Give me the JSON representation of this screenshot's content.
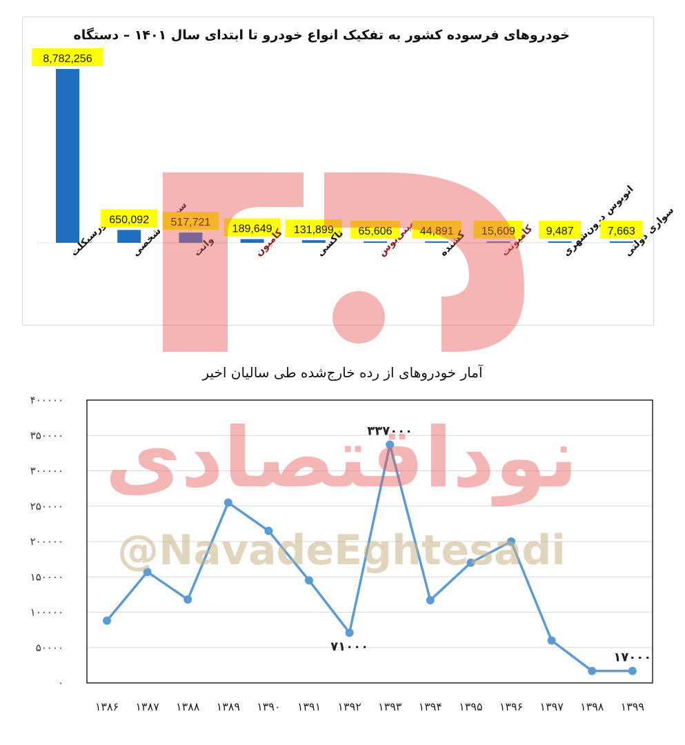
{
  "chart_data": [
    {
      "type": "bar",
      "title": "خودروهای فرسوده کشور به تفکیک انواع خودرو تا ابتدای سال ۱۴۰۱ – دستگاه",
      "categories": [
        "موتورسیکلت",
        "سواری شخصی",
        "وانت",
        "کامیون",
        "تاکسی",
        "مینی‌بوس",
        "کشنده",
        "کامیونت",
        "اتوبوس درون‌شهری",
        "سواری دولتی"
      ],
      "values": [
        8782256,
        650092,
        517721,
        189649,
        131899,
        65606,
        44891,
        15609,
        9487,
        7663
      ],
      "value_labels": [
        "8,782,256",
        "650,092",
        "517,721",
        "189,649",
        "131,899",
        "65,606",
        "44,891",
        "15,609",
        "9,487",
        "7,663"
      ],
      "red_category_indices": [
        3,
        5,
        7
      ],
      "colors": {
        "bar": "#1f6fbf",
        "label_bg": "#ffff00",
        "category_text": "#111111",
        "category_text_alt": "#8b1a1a"
      }
    },
    {
      "type": "line",
      "title": "آمار خودروهای از رده خارج‌شده طی سالیان اخیر",
      "x": [
        "۱۳۸۶",
        "۱۳۸۷",
        "۱۳۸۸",
        "۱۳۸۹",
        "۱۳۹۰",
        "۱۳۹۱",
        "۱۳۹۲",
        "۱۳۹۳",
        "۱۳۹۴",
        "۱۳۹۵",
        "۱۳۹۶",
        "۱۳۹۷",
        "۱۳۹۸",
        "۱۳۹۹"
      ],
      "values": [
        88000,
        157000,
        118000,
        255000,
        215000,
        145000,
        71000,
        337000,
        117000,
        170000,
        200000,
        60000,
        17000,
        17000
      ],
      "ylim": [
        0,
        400000
      ],
      "yticks": [
        "۰",
        "۵۰۰۰۰",
        "۱۰۰۰۰۰",
        "۱۵۰۰۰۰",
        "۲۰۰۰۰۰",
        "۲۵۰۰۰۰",
        "۳۰۰۰۰۰",
        "۳۵۰۰۰۰",
        "۴۰۰۰۰۰"
      ],
      "annotations": [
        {
          "index": 7,
          "text": "۳۳۷۰۰۰",
          "position": "above"
        },
        {
          "index": 6,
          "text": "۷۱۰۰۰",
          "position": "below"
        },
        {
          "index": 13,
          "text": "۱۷۰۰۰",
          "position": "above"
        }
      ],
      "grid": true,
      "colors": {
        "line": "#5b9bd5",
        "grid": "#d9d9d9"
      }
    }
  ],
  "watermark": {
    "text": "نوداقتصادی",
    "handle": "@NavadeEghtesadi",
    "colors": {
      "logo": "#e85c5c",
      "handle": "#c9b48a"
    }
  }
}
